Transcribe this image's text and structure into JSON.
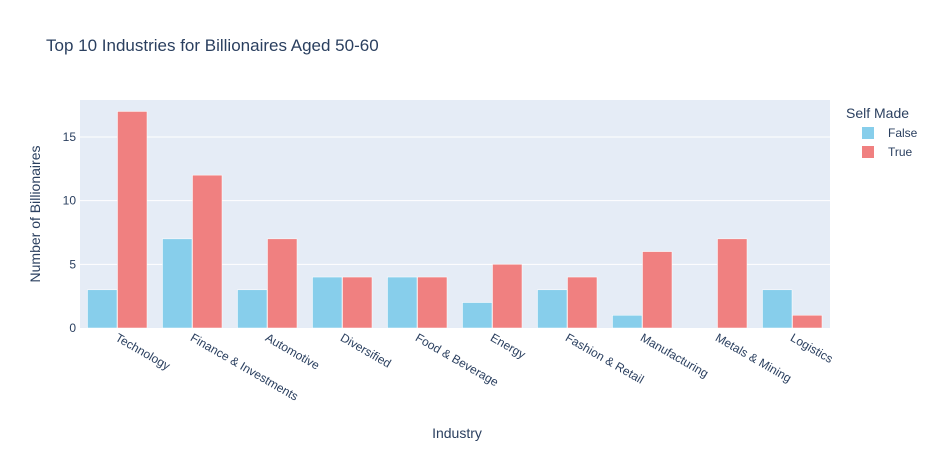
{
  "chart_data": {
    "type": "bar",
    "title": "Top 10 Industries for Billionaires Aged 50-60",
    "xlabel": "Industry",
    "ylabel": "Number of Billionaires",
    "categories": [
      "Technology",
      "Finance & Investments",
      "Automotive",
      "Diversified",
      "Food & Beverage",
      "Energy",
      "Fashion & Retail",
      "Manufacturing",
      "Metals & Mining",
      "Logistics"
    ],
    "series": [
      {
        "name": "False",
        "color": "#87ceeb",
        "values": [
          3,
          7,
          3,
          4,
          4,
          2,
          3,
          1,
          0,
          3
        ]
      },
      {
        "name": "True",
        "color": "#f08080",
        "values": [
          17,
          12,
          7,
          4,
          4,
          5,
          4,
          6,
          7,
          1
        ]
      }
    ],
    "ylim": [
      0,
      17.9
    ],
    "yticks": [
      0,
      5,
      10,
      15
    ],
    "legend": {
      "title": "Self Made",
      "placement": "top-right"
    },
    "grid": true,
    "plot_bg": "#e5ecf6",
    "grid_color": "#ffffff",
    "text_color": "#2a3f5f"
  }
}
